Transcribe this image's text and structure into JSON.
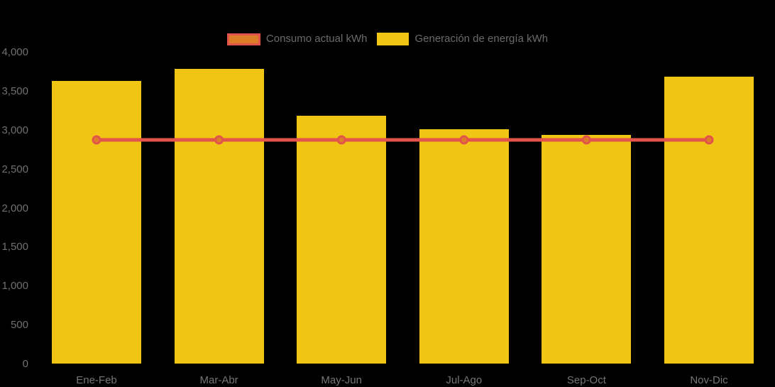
{
  "page": {
    "background": "#000000"
  },
  "legend": {
    "items": [
      {
        "label": "Consumo actual kWh",
        "swatch": "line-swatch"
      },
      {
        "label": "Generación de energía kWh",
        "swatch": "bar-swatch"
      }
    ]
  },
  "colors": {
    "bar": "#f0c514",
    "line": "#e2544b",
    "marker_fill": "#dd7d27",
    "axis_text": "#707070",
    "legend_text": "#6b6b6b",
    "background": "#000000"
  },
  "chart_data": {
    "type": "bar",
    "subtype": "bar-with-line-overlay",
    "title": "",
    "xlabel": "",
    "ylabel": "",
    "categories": [
      "Ene-Feb",
      "Mar-Abr",
      "May-Jun",
      "Jul-Ago",
      "Sep-Oct",
      "Nov-Dic"
    ],
    "series": [
      {
        "name": "Consumo actual kWh",
        "type": "line",
        "color": "#e2544b",
        "marker_fill": "#dd7d27",
        "values": [
          2870,
          2870,
          2870,
          2870,
          2870,
          2870
        ]
      },
      {
        "name": "Generación de energía kWh",
        "type": "bar",
        "color": "#f0c514",
        "values": [
          3630,
          3780,
          3180,
          3010,
          2930,
          3680
        ]
      }
    ],
    "ylim": [
      0,
      4000
    ],
    "ytick_step": 500,
    "ytick_labels": [
      "0",
      "500",
      "1,000",
      "1,500",
      "2,000",
      "2,500",
      "3,000",
      "3,500",
      "4,000"
    ],
    "grid": false,
    "legend_position": "top-center"
  }
}
